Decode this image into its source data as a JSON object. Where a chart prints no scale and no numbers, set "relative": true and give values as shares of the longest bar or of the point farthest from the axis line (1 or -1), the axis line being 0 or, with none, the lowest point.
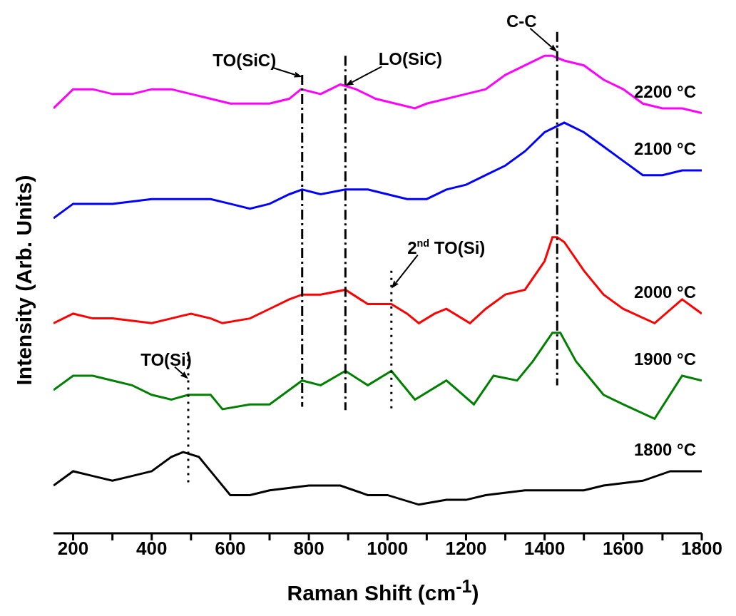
{
  "chart_data": {
    "type": "line",
    "relative": true,
    "xlabel": "Raman Shift (cm$^{-1}$)",
    "ylabel": "Intensity (Arb. Units)",
    "xlim": [
      150,
      1800
    ],
    "xticks": [
      200,
      {
        "value": 300,
        "label": null
      },
      400,
      {
        "value": 500,
        "label": null
      },
      600,
      {
        "value": 700,
        "label": null
      },
      800,
      {
        "value": 900,
        "label": null
      },
      1000,
      {
        "value": 1100,
        "label": null
      },
      1200,
      {
        "value": 1300,
        "label": null
      },
      1400,
      {
        "value": 1500,
        "label": null
      },
      1600,
      {
        "value": 1700,
        "label": null
      },
      1800
    ],
    "series": [
      {
        "name": "2200 °C",
        "color": "#ff00ff",
        "x": [
          150,
          200,
          250,
          300,
          350,
          400,
          450,
          500,
          550,
          600,
          650,
          700,
          750,
          780,
          830,
          880,
          920,
          970,
          1020,
          1070,
          1100,
          1200,
          1250,
          1300,
          1350,
          1400,
          1420,
          1450,
          1500,
          1550,
          1600,
          1650,
          1700,
          1750,
          1800
        ],
        "values": [
          0.89,
          0.93,
          0.93,
          0.92,
          0.92,
          0.93,
          0.93,
          0.92,
          0.91,
          0.9,
          0.9,
          0.9,
          0.91,
          0.93,
          0.92,
          0.94,
          0.93,
          0.91,
          0.9,
          0.89,
          0.9,
          0.92,
          0.93,
          0.96,
          0.98,
          1,
          1,
          0.99,
          0.98,
          0.95,
          0.93,
          0.9,
          0.89,
          0.89,
          0.88
        ]
      },
      {
        "name": "2100 °C",
        "color": "#0000ff",
        "x": [
          150,
          200,
          300,
          400,
          500,
          550,
          600,
          650,
          700,
          750,
          783,
          830,
          893,
          950,
          1000,
          1050,
          1070,
          1100,
          1150,
          1200,
          1250,
          1300,
          1350,
          1400,
          1450,
          1500,
          1550,
          1600,
          1650,
          1700,
          1750,
          1800
        ],
        "values": [
          0.66,
          0.69,
          0.69,
          0.7,
          0.7,
          0.7,
          0.69,
          0.68,
          0.69,
          0.71,
          0.72,
          0.71,
          0.72,
          0.72,
          0.71,
          0.7,
          0.7,
          0.7,
          0.72,
          0.73,
          0.75,
          0.77,
          0.8,
          0.84,
          0.86,
          0.84,
          0.81,
          0.78,
          0.75,
          0.75,
          0.76,
          0.76
        ]
      },
      {
        "name": "2000 °C",
        "color": "#ff0000",
        "x": [
          150,
          200,
          250,
          300,
          400,
          450,
          500,
          550,
          580,
          650,
          700,
          750,
          783,
          830,
          893,
          950,
          1010,
          1050,
          1080,
          1120,
          1150,
          1210,
          1250,
          1300,
          1350,
          1400,
          1420,
          1432,
          1450,
          1500,
          1550,
          1600,
          1680,
          1750,
          1800
        ],
        "values": [
          0.44,
          0.46,
          0.45,
          0.45,
          0.44,
          0.45,
          0.46,
          0.45,
          0.44,
          0.45,
          0.47,
          0.49,
          0.5,
          0.5,
          0.51,
          0.48,
          0.48,
          0.46,
          0.44,
          0.46,
          0.47,
          0.44,
          0.47,
          0.5,
          0.51,
          0.57,
          0.62,
          0.62,
          0.61,
          0.55,
          0.5,
          0.47,
          0.44,
          0.49,
          0.46
        ]
      },
      {
        "name": "1900 °C",
        "color": "#008000",
        "x": [
          150,
          200,
          250,
          300,
          350,
          400,
          450,
          493,
          550,
          580,
          650,
          700,
          750,
          783,
          830,
          893,
          950,
          1010,
          1070,
          1150,
          1220,
          1270,
          1330,
          1370,
          1420,
          1440,
          1480,
          1550,
          1600,
          1680,
          1750,
          1800
        ],
        "values": [
          0.3,
          0.33,
          0.33,
          0.32,
          0.31,
          0.29,
          0.28,
          0.29,
          0.29,
          0.26,
          0.27,
          0.27,
          0.3,
          0.32,
          0.31,
          0.34,
          0.31,
          0.34,
          0.28,
          0.32,
          0.27,
          0.33,
          0.32,
          0.36,
          0.42,
          0.42,
          0.36,
          0.29,
          0.27,
          0.24,
          0.33,
          0.32
        ]
      },
      {
        "name": "1800 °C",
        "color": "#000000",
        "x": [
          150,
          200,
          250,
          300,
          350,
          400,
          450,
          480,
          520,
          560,
          600,
          650,
          700,
          800,
          880,
          950,
          1000,
          1080,
          1150,
          1200,
          1250,
          1350,
          1420,
          1500,
          1550,
          1650,
          1720,
          1800
        ],
        "values": [
          0.1,
          0.13,
          0.12,
          0.11,
          0.12,
          0.13,
          0.16,
          0.17,
          0.16,
          0.12,
          0.08,
          0.08,
          0.09,
          0.1,
          0.1,
          0.08,
          0.08,
          0.06,
          0.07,
          0.07,
          0.08,
          0.09,
          0.09,
          0.09,
          0.1,
          0.11,
          0.13,
          0.13
        ]
      }
    ],
    "ref_lines": [
      {
        "axis": "x",
        "value": 493,
        "label": "TO(Si)",
        "line_style": "dotted"
      },
      {
        "axis": "x",
        "value": 783,
        "label": "TO(SiC)",
        "line_style": "dashed"
      },
      {
        "axis": "x",
        "value": 893,
        "label": "LO(SiC)",
        "line_style": "dashed"
      },
      {
        "axis": "x",
        "value": 1010,
        "label": "2$^{nd}$ TO(Si)",
        "line_style": "dotted"
      },
      {
        "axis": "x",
        "value": 1432,
        "label": "C-C",
        "line_style": "dashed"
      }
    ]
  }
}
